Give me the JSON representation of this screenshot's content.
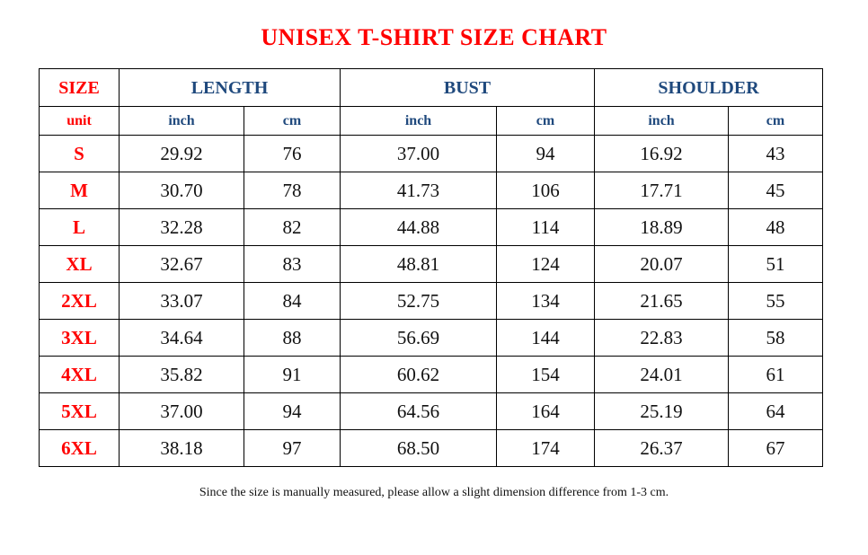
{
  "title": "UNISEX T-SHIRT SIZE CHART",
  "header": {
    "size": "SIZE",
    "length": "LENGTH",
    "bust": "BUST",
    "shoulder": "SHOULDER"
  },
  "units": {
    "label": "unit",
    "inch": "inch",
    "cm": "cm"
  },
  "rows": [
    {
      "size": "S",
      "length_in": "29.92",
      "length_cm": "76",
      "bust_in": "37.00",
      "bust_cm": "94",
      "shoulder_in": "16.92",
      "shoulder_cm": "43"
    },
    {
      "size": "M",
      "length_in": "30.70",
      "length_cm": "78",
      "bust_in": "41.73",
      "bust_cm": "106",
      "shoulder_in": "17.71",
      "shoulder_cm": "45"
    },
    {
      "size": "L",
      "length_in": "32.28",
      "length_cm": "82",
      "bust_in": "44.88",
      "bust_cm": "114",
      "shoulder_in": "18.89",
      "shoulder_cm": "48"
    },
    {
      "size": "XL",
      "length_in": "32.67",
      "length_cm": "83",
      "bust_in": "48.81",
      "bust_cm": "124",
      "shoulder_in": "20.07",
      "shoulder_cm": "51"
    },
    {
      "size": "2XL",
      "length_in": "33.07",
      "length_cm": "84",
      "bust_in": "52.75",
      "bust_cm": "134",
      "shoulder_in": "21.65",
      "shoulder_cm": "55"
    },
    {
      "size": "3XL",
      "length_in": "34.64",
      "length_cm": "88",
      "bust_in": "56.69",
      "bust_cm": "144",
      "shoulder_in": "22.83",
      "shoulder_cm": "58"
    },
    {
      "size": "4XL",
      "length_in": "35.82",
      "length_cm": "91",
      "bust_in": "60.62",
      "bust_cm": "154",
      "shoulder_in": "24.01",
      "shoulder_cm": "61"
    },
    {
      "size": "5XL",
      "length_in": "37.00",
      "length_cm": "94",
      "bust_in": "64.56",
      "bust_cm": "164",
      "shoulder_in": "25.19",
      "shoulder_cm": "64"
    },
    {
      "size": "6XL",
      "length_in": "38.18",
      "length_cm": "97",
      "bust_in": "68.50",
      "bust_cm": "174",
      "shoulder_in": "26.37",
      "shoulder_cm": "67"
    }
  ],
  "note": "Since the size is manually measured, please allow a slight dimension difference from 1-3 cm.",
  "colors": {
    "title": "#ff0000",
    "size_column": "#ff0000",
    "header": "#1f497d",
    "text": "#111111"
  }
}
